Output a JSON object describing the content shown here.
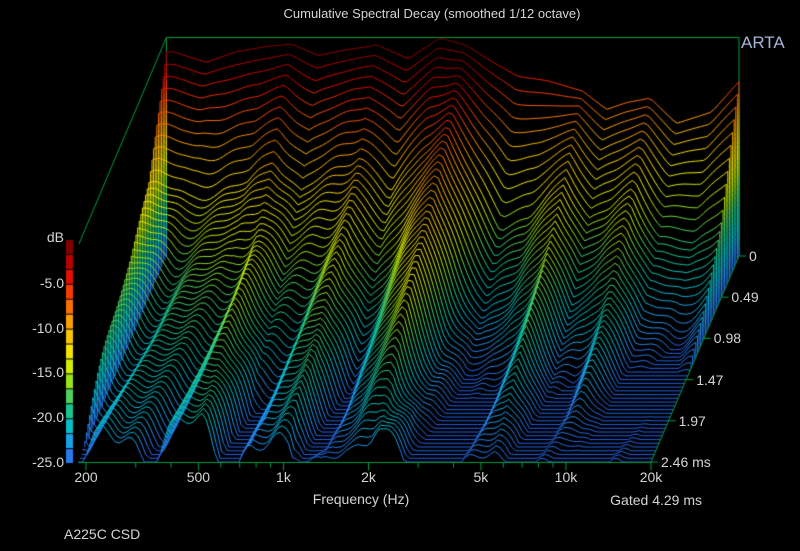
{
  "chart_data": {
    "type": "waterfall",
    "title": "Cumulative Spectral Decay (smoothed 1/12 octave)",
    "xlabel": "Frequency (Hz)",
    "colorbar_label": "dB",
    "footer": "A225C CSD",
    "gated": "Gated 4.29 ms",
    "watermark": "ARTA",
    "x_ticks": [
      "200",
      "500",
      "1k",
      "2k",
      "5k",
      "10k",
      "20k"
    ],
    "x_tick_values": [
      200,
      500,
      1000,
      2000,
      5000,
      10000,
      20000
    ],
    "x_minor_tick_values": [
      300,
      400,
      600,
      700,
      800,
      900,
      3000,
      4000,
      6000,
      7000,
      8000,
      9000
    ],
    "db_ticks": [
      "-5.0",
      "-10.0",
      "-15.0",
      "-20.0",
      "-25.0"
    ],
    "db_tick_values": [
      -5,
      -10,
      -15,
      -20,
      -25
    ],
    "time_ticks": [
      "0",
      "0.49",
      "0.98",
      "1.47",
      "1.97",
      "2.46 ms"
    ],
    "time_tick_values_ms": [
      0,
      0.49,
      0.98,
      1.47,
      1.97,
      2.46
    ],
    "freq_range_hz": [
      200,
      20000
    ],
    "db_range": [
      -25,
      0
    ],
    "time_range_ms": [
      0,
      2.46
    ],
    "num_slices": 56,
    "axis_color": "#009e3c",
    "text_color": "#d4d4d4",
    "watermark_color": "#a8b4d8",
    "background_color": "#000000",
    "colormap": [
      [
        0.0,
        "#6e0000"
      ],
      [
        0.07,
        "#a00000"
      ],
      [
        0.14,
        "#d80000"
      ],
      [
        0.22,
        "#f63000"
      ],
      [
        0.3,
        "#fa7000"
      ],
      [
        0.38,
        "#fba800"
      ],
      [
        0.46,
        "#f9d400"
      ],
      [
        0.53,
        "#f0f000"
      ],
      [
        0.61,
        "#b4e800"
      ],
      [
        0.69,
        "#55d255"
      ],
      [
        0.77,
        "#14c492"
      ],
      [
        0.85,
        "#00bed2"
      ],
      [
        0.93,
        "#2592f2"
      ],
      [
        1.0,
        "#2561e8"
      ]
    ],
    "surface": {
      "comment_floor": "values of -26 are below the -25 dB display floor",
      "frequencies": [
        200,
        260,
        330,
        420,
        520,
        650,
        800,
        1050,
        1350,
        1750,
        2150,
        2700,
        3300,
        4200,
        5600,
        6800,
        8000,
        9700,
        12000,
        16000,
        20000
      ],
      "times_ms": [
        0,
        0.49,
        0.98,
        1.47,
        1.97,
        2.46
      ],
      "magnitude_db": [
        [
          -1.6,
          -2.8,
          -1.6,
          -1.0,
          -0.7,
          -2.0,
          -1.4,
          -0.8,
          -2.4,
          0.0,
          -0.8,
          -2.8,
          -4.4,
          -4.9,
          -6.1,
          -8.2,
          -7.4,
          -6.9,
          -9.8,
          -8.5,
          -5.0
        ],
        [
          -12,
          -13.5,
          -13,
          -12,
          -9,
          -13,
          -11,
          -8.5,
          -13,
          -7.5,
          -5.5,
          -12,
          -17,
          -16,
          -11,
          -16,
          -15,
          -12.5,
          -18,
          -19,
          -16
        ],
        [
          -16,
          -17.5,
          -17,
          -16,
          -13,
          -18,
          -16,
          -13.5,
          -19,
          -13,
          -9.5,
          -17.5,
          -23,
          -21,
          -14.5,
          -21.5,
          -20,
          -16,
          -23,
          -24,
          -22
        ],
        [
          -18.5,
          -20,
          -19.5,
          -18.5,
          -16,
          -21.5,
          -20,
          -17,
          -23,
          -17.5,
          -13,
          -21.5,
          -26,
          -24.5,
          -18,
          -25,
          -24,
          -20,
          -26,
          -26,
          -26
        ],
        [
          -20.5,
          -22,
          -21.5,
          -20.5,
          -18.5,
          -24,
          -23,
          -19.5,
          -26,
          -21,
          -16.5,
          -24.5,
          -26,
          -26,
          -21.5,
          -26,
          -26,
          -24,
          -26,
          -26,
          -26
        ],
        [
          -22.5,
          -23.5,
          -23,
          -22,
          -20.5,
          -26,
          -25,
          -21.5,
          -26,
          -24,
          -19.5,
          -26,
          -26,
          -26,
          -24.5,
          -26,
          -26,
          -26,
          -26,
          -26,
          -26
        ]
      ]
    }
  }
}
